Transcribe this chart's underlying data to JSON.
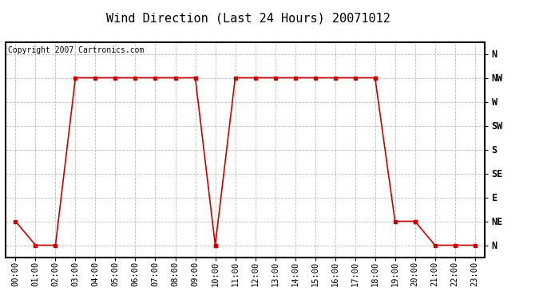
{
  "title": "Wind Direction (Last 24 Hours) 20071012",
  "copyright_text": "Copyright 2007 Cartronics.com",
  "x_labels": [
    "00:00",
    "01:00",
    "02:00",
    "03:00",
    "04:00",
    "05:00",
    "06:00",
    "07:00",
    "08:00",
    "09:00",
    "10:00",
    "11:00",
    "12:00",
    "13:00",
    "14:00",
    "15:00",
    "16:00",
    "17:00",
    "18:00",
    "19:00",
    "20:00",
    "21:00",
    "22:00",
    "23:00"
  ],
  "y_labels": [
    "N",
    "NE",
    "E",
    "SE",
    "S",
    "SW",
    "W",
    "NW",
    "N"
  ],
  "y_values": [
    0,
    1,
    2,
    3,
    4,
    5,
    6,
    7,
    8
  ],
  "data_x": [
    0,
    1,
    2,
    3,
    4,
    5,
    6,
    7,
    8,
    9,
    9,
    10,
    10,
    11,
    12,
    13,
    14,
    15,
    16,
    17,
    18,
    18,
    19,
    20,
    20,
    21,
    22,
    23
  ],
  "data_y": [
    1,
    0,
    0,
    7,
    7,
    7,
    7,
    7,
    7,
    7,
    7,
    0,
    0,
    7,
    7,
    7,
    7,
    7,
    7,
    7,
    7,
    7,
    1,
    1,
    1,
    0,
    0,
    0
  ],
  "line_color": "#cc0000",
  "marker": "s",
  "marker_size": 2.5,
  "bg_color": "#ffffff",
  "plot_bg_color": "#ffffff",
  "grid_color": "#bbbbbb",
  "title_fontsize": 11,
  "axis_fontsize": 7.5,
  "copyright_fontsize": 7
}
